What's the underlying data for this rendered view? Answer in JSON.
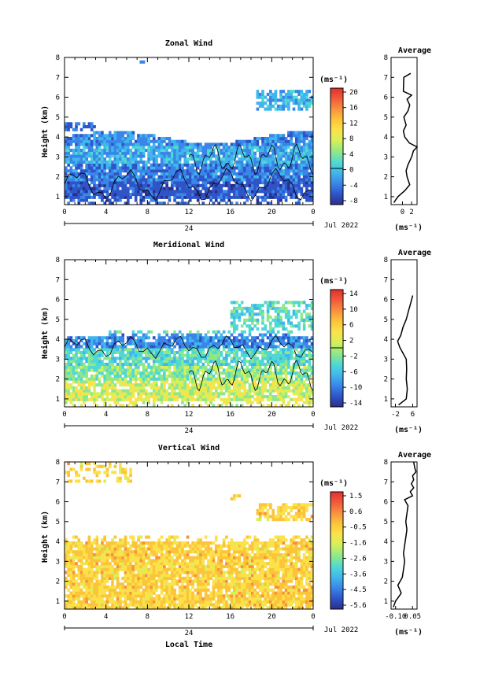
{
  "colors": {
    "colormap": [
      "#2b2f8a",
      "#2f54c8",
      "#3a86e8",
      "#40b6ec",
      "#4fd8d4",
      "#8ee88a",
      "#d6f05a",
      "#fbe24a",
      "#fbc43a",
      "#f89040",
      "#f25a3a",
      "#e0302f"
    ],
    "ink": "#000000",
    "gap": "#ffffff"
  },
  "panels": [
    {
      "id": "zonal",
      "title": "Zonal Wind",
      "ylabel": "Height (km)",
      "y_ticks": [
        "1",
        "2",
        "3",
        "4",
        "5",
        "6",
        "7",
        "8"
      ],
      "x_ticks": [
        "0",
        "4",
        "8",
        "12",
        "16",
        "20",
        "0"
      ],
      "date_tick": "24",
      "date_label": "Jul 2022",
      "cbar_unit": "(ms⁻¹)",
      "cbar_ticks": [
        "20",
        "16",
        "12",
        "8",
        "4",
        "0",
        "-4",
        "-8"
      ],
      "profile": {
        "title": "Average",
        "x_ticks": [
          "0",
          "2"
        ],
        "xlabel": "(ms⁻¹)",
        "y_ticks": [
          "1",
          "2",
          "3",
          "4",
          "5",
          "6",
          "7",
          "8"
        ]
      }
    },
    {
      "id": "meridional",
      "title": "Meridional Wind",
      "ylabel": "Height (km)",
      "y_ticks": [
        "1",
        "2",
        "3",
        "4",
        "5",
        "6",
        "7",
        "8"
      ],
      "x_ticks": [
        "0",
        "4",
        "8",
        "12",
        "16",
        "20",
        "0"
      ],
      "date_tick": "24",
      "date_label": "Jul 2022",
      "cbar_unit": "(ms⁻¹)",
      "cbar_ticks": [
        "14",
        "10",
        "6",
        "2",
        "-2",
        "-6",
        "-10",
        "-14"
      ],
      "profile": {
        "title": "Average",
        "x_ticks": [
          "-2",
          "6"
        ],
        "xlabel": "(ms⁻¹)",
        "y_ticks": [
          "1",
          "2",
          "3",
          "4",
          "5",
          "6",
          "7",
          "8"
        ]
      }
    },
    {
      "id": "vertical",
      "title": "Vertical Wind",
      "ylabel": "Height (km)",
      "y_ticks": [
        "1",
        "2",
        "3",
        "4",
        "5",
        "6",
        "7",
        "8"
      ],
      "x_ticks": [
        "0",
        "4",
        "8",
        "12",
        "16",
        "20",
        "0"
      ],
      "date_tick": "24",
      "date_label": "Jul 2022",
      "xlabel": "Local Time",
      "cbar_unit": "(ms⁻¹)",
      "cbar_ticks": [
        "1.5",
        "0.6",
        "-0.5",
        "-1.6",
        "-2.6",
        "-3.6",
        "-4.5",
        "-5.6"
      ],
      "profile": {
        "title": "Average",
        "x_ticks": [
          "-0.10",
          "0.05"
        ],
        "xlabel": "(ms⁻¹)",
        "y_ticks": [
          "1",
          "2",
          "3",
          "4",
          "5",
          "6",
          "7",
          "8"
        ]
      }
    }
  ],
  "chart_data": [
    {
      "type": "heatmap",
      "title": "Zonal Wind",
      "xlabel": "",
      "ylabel": "Height (km)",
      "x_range_hours": [
        0,
        24
      ],
      "ylim": [
        0.6,
        8
      ],
      "colorbar": {
        "unit": "ms-1",
        "range": [
          -10,
          22
        ],
        "contour_at": 0
      },
      "approx_values": [
        {
          "height_band": "1-2.5 km",
          "dominant": "-6 to 0"
        },
        {
          "height_band": "2.5-4 km",
          "dominant": "0 to 6"
        },
        {
          "height_band": "5.5-6.3 km (after 18 h)",
          "dominant": "2 to 6"
        }
      ],
      "profile": {
        "title": "Average",
        "heights": [
          0.7,
          1.0,
          1.3,
          1.6,
          2.0,
          2.3,
          2.6,
          3.0,
          3.3,
          3.5,
          3.7,
          4.0,
          4.3,
          4.6,
          5.0,
          5.3,
          5.6,
          5.9,
          6.1,
          6.3,
          7.0,
          7.2
        ],
        "values": [
          -1.9,
          -1.0,
          0.5,
          1.6,
          1.0,
          0.8,
          1.2,
          2.0,
          2.4,
          3.2,
          1.5,
          0.5,
          0.2,
          0.8,
          0.3,
          1.2,
          1.6,
          1.0,
          2.0,
          0.2,
          0.3,
          1.8
        ]
      }
    },
    {
      "type": "heatmap",
      "title": "Meridional Wind",
      "xlabel": "",
      "ylabel": "Height (km)",
      "x_range_hours": [
        0,
        24
      ],
      "ylim": [
        0.6,
        8
      ],
      "colorbar": {
        "unit": "ms-1",
        "range": [
          -16,
          16
        ],
        "contour_at": 0
      },
      "approx_values": [
        {
          "height_band": "1-2.5 km",
          "dominant": "2 to 6"
        },
        {
          "height_band": "2.5-3.5 km",
          "dominant": "-2 to 2"
        },
        {
          "height_band": "3.5-4.3 km",
          "dominant": "-6 to -2"
        }
      ],
      "profile": {
        "title": "Average",
        "heights": [
          0.7,
          1.0,
          1.5,
          2.0,
          2.5,
          3.0,
          3.3,
          3.6,
          3.9,
          4.2,
          4.6,
          5.0,
          5.4,
          5.8,
          6.2
        ],
        "values": [
          -0.5,
          3.0,
          3.5,
          3.0,
          3.2,
          3.0,
          1.5,
          0.0,
          -1.0,
          0.5,
          1.5,
          3.0,
          4.0,
          5.0,
          6.0
        ]
      }
    },
    {
      "type": "heatmap",
      "title": "Vertical Wind",
      "xlabel": "Local Time",
      "ylabel": "Height (km)",
      "x_range_hours": [
        0,
        24
      ],
      "ylim": [
        0.6,
        8
      ],
      "colorbar": {
        "unit": "ms-1",
        "range": [
          -6,
          2
        ]
      },
      "approx_values": [
        {
          "height_band": "0.6-4 km",
          "dominant": "0.6 to 1.5"
        },
        {
          "height_band": "5-5.8 km (after 18 h)",
          "dominant": "0.6 to 1.5"
        },
        {
          "height_band": "7.3-8 km (0-6 h)",
          "dominant": "0.6 to 1.5"
        }
      ],
      "profile": {
        "title": "Average",
        "heights": [
          0.7,
          1.0,
          1.4,
          1.8,
          2.2,
          2.6,
          3.0,
          3.4,
          3.8,
          4.2,
          4.6,
          5.0,
          5.4,
          5.8,
          6.1,
          6.3,
          6.5,
          6.7,
          6.9,
          7.1,
          7.3,
          7.5,
          7.7,
          8.0
        ],
        "values": [
          -0.12,
          -0.1,
          -0.05,
          -0.08,
          -0.04,
          -0.03,
          -0.02,
          -0.03,
          -0.02,
          -0.01,
          0.0,
          -0.01,
          0.0,
          0.01,
          -0.02,
          0.05,
          0.03,
          0.06,
          0.04,
          0.06,
          0.05,
          0.08,
          0.07,
          0.06
        ]
      }
    }
  ]
}
